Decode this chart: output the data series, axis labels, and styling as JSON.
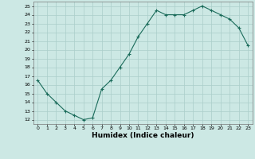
{
  "x": [
    0,
    1,
    2,
    3,
    4,
    5,
    6,
    7,
    8,
    9,
    10,
    11,
    12,
    13,
    14,
    15,
    16,
    17,
    18,
    19,
    20,
    21,
    22,
    23
  ],
  "y": [
    16.5,
    15.0,
    14.0,
    13.0,
    12.5,
    12.0,
    12.2,
    15.5,
    16.5,
    18.0,
    19.5,
    21.5,
    23.0,
    24.5,
    24.0,
    24.0,
    24.0,
    24.5,
    25.0,
    24.5,
    24.0,
    23.5,
    22.5,
    20.5
  ],
  "line_color": "#1a6b5a",
  "marker_color": "#1a6b5a",
  "bg_color": "#cce8e4",
  "grid_color": "#aaceca",
  "xlabel": "Humidex (Indice chaleur)",
  "ylabel_ticks": [
    12,
    13,
    14,
    15,
    16,
    17,
    18,
    19,
    20,
    21,
    22,
    23,
    24,
    25
  ],
  "xtick_labels": [
    "0",
    "1",
    "2",
    "3",
    "4",
    "5",
    "6",
    "7",
    "8",
    "9",
    "10",
    "11",
    "12",
    "13",
    "14",
    "15",
    "16",
    "17",
    "18",
    "19",
    "20",
    "21",
    "22",
    "23"
  ],
  "ylim": [
    11.5,
    25.5
  ],
  "xlim": [
    -0.5,
    23.5
  ]
}
